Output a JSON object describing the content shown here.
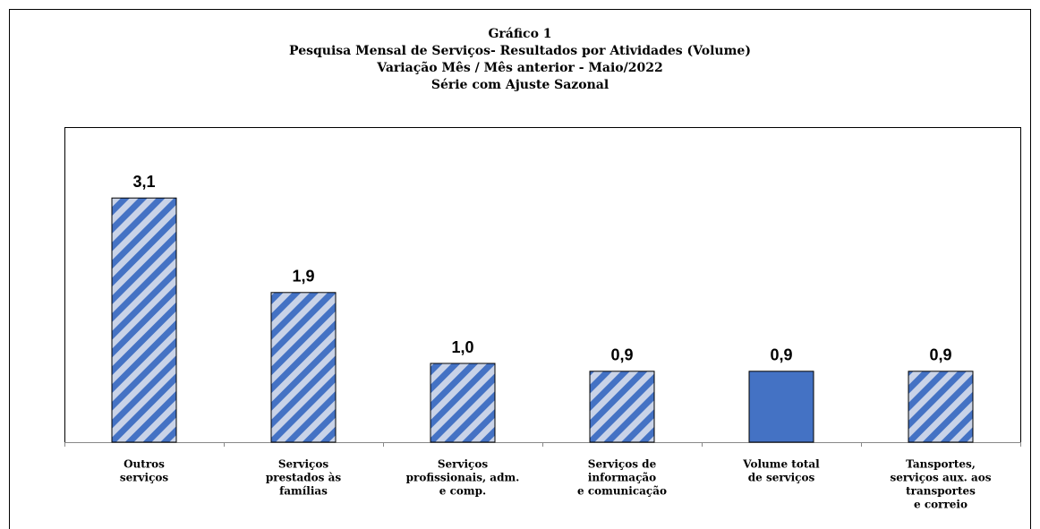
{
  "chart_data": {
    "type": "bar",
    "title": [
      "Gráfico 1",
      "Pesquisa Mensal de Serviços- Resultados por Atividades (Volume)",
      "Variação Mês / Mês anterior - Maio/2022",
      "Série com Ajuste Sazonal"
    ],
    "categories": [
      [
        "Outros",
        "serviços"
      ],
      [
        "Serviços",
        "prestados às",
        "famílias"
      ],
      [
        "Serviços",
        "profissionais, adm.",
        "e comp."
      ],
      [
        "Serviços de",
        "informação",
        "e comunicação"
      ],
      [
        "Volume total",
        "de serviços"
      ],
      [
        "Tansportes,",
        "serviços aux. aos",
        "transportes",
        "e correio"
      ]
    ],
    "values": [
      3.1,
      1.9,
      1.0,
      0.9,
      0.9,
      0.9
    ],
    "value_labels": [
      "3,1",
      "1,9",
      "1,0",
      "0,9",
      "0,9",
      "0,9"
    ],
    "color": "#4472c4",
    "bar_styles": [
      "hatch",
      "hatch",
      "hatch",
      "hatch",
      "solid",
      "hatch"
    ],
    "ylim": [
      0,
      4
    ]
  }
}
